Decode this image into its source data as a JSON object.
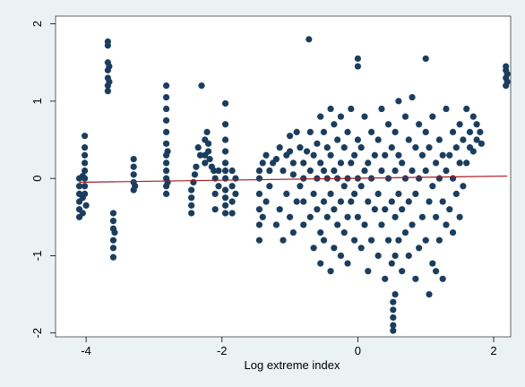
{
  "chart_data": {
    "type": "scatter",
    "title": "",
    "xlabel": "Log extreme index",
    "ylabel": "",
    "xlim": [
      -4.45,
      2.25
    ],
    "ylim": [
      -2.05,
      2.1
    ],
    "xticks": [
      -4,
      -2,
      0,
      2
    ],
    "yticks": [
      -2,
      -1,
      0,
      1,
      2
    ],
    "xtick_labels": [
      "-4",
      "-2",
      "0",
      "2"
    ],
    "ytick_labels": [
      "-2",
      "-1",
      "0",
      "1",
      "2"
    ],
    "grid": false,
    "legend": "none",
    "colors": {
      "background": "#eaf2f3",
      "plot_background": "#ffffff",
      "points": "#1b3d5e",
      "fit_line": "#a51d24"
    },
    "series": [
      {
        "kind": "scatter",
        "note_clusters": "points are dense vertical clusters at discrete x values",
        "points": [
          [
            -4.1,
            -0.5
          ],
          [
            -4.1,
            -0.4
          ],
          [
            -4.1,
            -0.3
          ],
          [
            -4.1,
            -0.2
          ],
          [
            -4.1,
            -0.1
          ],
          [
            -4.1,
            0.0
          ],
          [
            -4.05,
            -0.45
          ],
          [
            -4.05,
            -0.25
          ],
          [
            -4.05,
            0.03
          ],
          [
            -4.02,
            -0.2
          ],
          [
            -4.02,
            -0.1
          ],
          [
            -4.02,
            0.0
          ],
          [
            -4.02,
            0.1
          ],
          [
            -4.02,
            0.2
          ],
          [
            -4.02,
            0.3
          ],
          [
            -4.02,
            0.4
          ],
          [
            -4.02,
            0.55
          ],
          [
            -4.0,
            -0.35
          ],
          [
            -3.68,
            1.13
          ],
          [
            -3.68,
            1.2
          ],
          [
            -3.68,
            1.3
          ],
          [
            -3.68,
            1.4
          ],
          [
            -3.68,
            1.5
          ],
          [
            -3.68,
            1.77
          ],
          [
            -3.68,
            1.72
          ],
          [
            -3.66,
            1.25
          ],
          [
            -3.66,
            1.45
          ],
          [
            -3.6,
            -0.45
          ],
          [
            -3.6,
            -0.55
          ],
          [
            -3.6,
            -0.65
          ],
          [
            -3.6,
            -0.8
          ],
          [
            -3.6,
            -0.9
          ],
          [
            -3.6,
            -1.02
          ],
          [
            -3.58,
            -0.7
          ],
          [
            -3.3,
            -0.15
          ],
          [
            -3.3,
            -0.05
          ],
          [
            -3.3,
            0.05
          ],
          [
            -3.3,
            0.15
          ],
          [
            -3.3,
            0.25
          ],
          [
            -3.28,
            -0.1
          ],
          [
            -2.82,
            -0.2
          ],
          [
            -2.82,
            -0.1
          ],
          [
            -2.82,
            0.0
          ],
          [
            -2.82,
            0.1
          ],
          [
            -2.82,
            0.2
          ],
          [
            -2.82,
            0.3
          ],
          [
            -2.82,
            0.45
          ],
          [
            -2.82,
            0.6
          ],
          [
            -2.82,
            0.75
          ],
          [
            -2.82,
            0.9
          ],
          [
            -2.82,
            1.05
          ],
          [
            -2.82,
            1.2
          ],
          [
            -2.8,
            -0.05
          ],
          [
            -2.8,
            0.35
          ],
          [
            -2.45,
            -0.45
          ],
          [
            -2.45,
            -0.35
          ],
          [
            -2.45,
            -0.25
          ],
          [
            -2.45,
            -0.15
          ],
          [
            -2.42,
            -0.05
          ],
          [
            -2.4,
            0.05
          ],
          [
            -2.38,
            0.15
          ],
          [
            -2.35,
            0.4
          ],
          [
            -2.32,
            0.3
          ],
          [
            -2.25,
            0.2
          ],
          [
            -2.25,
            0.3
          ],
          [
            -2.25,
            0.5
          ],
          [
            -2.22,
            0.6
          ],
          [
            -2.2,
            0.45
          ],
          [
            -2.2,
            0.35
          ],
          [
            -2.18,
            0.25
          ],
          [
            -2.15,
            0.15
          ],
          [
            -2.12,
            0.1
          ],
          [
            -2.1,
            -0.4
          ],
          [
            -2.1,
            -0.2
          ],
          [
            -2.1,
            0.0
          ],
          [
            -2.05,
            -0.1
          ],
          [
            -2.05,
            0.1
          ],
          [
            -2.3,
            1.2
          ],
          [
            -1.95,
            -0.45
          ],
          [
            -1.95,
            -0.35
          ],
          [
            -1.95,
            -0.25
          ],
          [
            -1.95,
            -0.15
          ],
          [
            -1.95,
            0.0
          ],
          [
            -1.95,
            0.1
          ],
          [
            -1.95,
            0.2
          ],
          [
            -1.95,
            0.35
          ],
          [
            -1.95,
            0.5
          ],
          [
            -1.95,
            0.7
          ],
          [
            -1.95,
            0.97
          ],
          [
            -1.85,
            -0.3
          ],
          [
            -1.85,
            -0.1
          ],
          [
            -1.85,
            0.1
          ],
          [
            -1.85,
            -0.45
          ],
          [
            -1.8,
            -0.2
          ],
          [
            -1.8,
            0.0
          ],
          [
            -1.45,
            -0.8
          ],
          [
            -1.45,
            -0.6
          ],
          [
            -1.45,
            -0.4
          ],
          [
            -1.45,
            -0.2
          ],
          [
            -1.45,
            0.0
          ],
          [
            -1.45,
            0.1
          ],
          [
            -1.4,
            -0.5
          ],
          [
            -1.4,
            0.2
          ],
          [
            -1.35,
            -0.3
          ],
          [
            -1.35,
            0.3
          ],
          [
            -1.3,
            -0.1
          ],
          [
            -1.3,
            0.1
          ],
          [
            -1.25,
            0.2
          ],
          [
            -1.2,
            -0.6
          ],
          [
            -1.2,
            0.25
          ],
          [
            -1.15,
            -0.4
          ],
          [
            -1.15,
            0.4
          ],
          [
            -1.1,
            -0.8
          ],
          [
            -1.1,
            0.1
          ],
          [
            -1.05,
            -0.2
          ],
          [
            -1.05,
            0.3
          ],
          [
            -1.0,
            -0.5
          ],
          [
            -1.0,
            0.35
          ],
          [
            -1.0,
            0.55
          ],
          [
            -0.95,
            -0.7
          ],
          [
            -0.95,
            0.05
          ],
          [
            -0.95,
            0.2
          ],
          [
            -0.9,
            -0.3
          ],
          [
            -0.9,
            0.6
          ],
          [
            -0.85,
            -0.1
          ],
          [
            -0.85,
            0.4
          ],
          [
            -0.8,
            -0.6
          ],
          [
            -0.8,
            -0.3
          ],
          [
            -0.8,
            0.0
          ],
          [
            -0.8,
            0.2
          ],
          [
            -0.75,
            0.35
          ],
          [
            -0.72,
            1.8
          ],
          [
            -0.7,
            -0.5
          ],
          [
            -0.7,
            0.1
          ],
          [
            -0.7,
            0.6
          ],
          [
            -0.65,
            -0.9
          ],
          [
            -0.65,
            -0.2
          ],
          [
            -0.65,
            0.3
          ],
          [
            -0.6,
            -0.4
          ],
          [
            -0.6,
            0.0
          ],
          [
            -0.6,
            0.45
          ],
          [
            -0.55,
            -1.1
          ],
          [
            -0.55,
            -0.7
          ],
          [
            -0.55,
            0.2
          ],
          [
            -0.55,
            0.8
          ],
          [
            -0.5,
            -0.8
          ],
          [
            -0.5,
            -0.3
          ],
          [
            -0.5,
            0.1
          ],
          [
            -0.5,
            0.6
          ],
          [
            -0.45,
            -0.5
          ],
          [
            -0.45,
            0.0
          ],
          [
            -0.45,
            0.4
          ],
          [
            -0.4,
            -1.2
          ],
          [
            -0.4,
            -0.2
          ],
          [
            -0.4,
            0.3
          ],
          [
            -0.4,
            0.9
          ],
          [
            -0.35,
            -0.9
          ],
          [
            -0.35,
            -0.4
          ],
          [
            -0.35,
            0.1
          ],
          [
            -0.35,
            0.7
          ],
          [
            -0.3,
            -0.6
          ],
          [
            -0.3,
            0.0
          ],
          [
            -0.3,
            0.5
          ],
          [
            -0.25,
            -1.0
          ],
          [
            -0.25,
            -0.3
          ],
          [
            -0.25,
            0.2
          ],
          [
            -0.25,
            0.8
          ],
          [
            -0.2,
            -0.7
          ],
          [
            -0.2,
            -0.1
          ],
          [
            -0.2,
            0.4
          ],
          [
            -0.15,
            -1.1
          ],
          [
            -0.15,
            -0.5
          ],
          [
            -0.15,
            0.0
          ],
          [
            -0.15,
            0.6
          ],
          [
            -0.1,
            -0.3
          ],
          [
            -0.1,
            0.2
          ],
          [
            -0.1,
            0.9
          ],
          [
            -0.05,
            -0.8
          ],
          [
            -0.05,
            -0.2
          ],
          [
            -0.05,
            0.3
          ],
          [
            0.0,
            -0.5
          ],
          [
            0.0,
            0.0
          ],
          [
            0.0,
            0.5
          ],
          [
            0.0,
            1.55
          ],
          [
            0.0,
            1.45
          ],
          [
            0.05,
            -0.9
          ],
          [
            0.05,
            -0.1
          ],
          [
            0.05,
            0.4
          ],
          [
            0.1,
            -0.6
          ],
          [
            0.1,
            0.1
          ],
          [
            0.1,
            0.8
          ],
          [
            0.15,
            -1.2
          ],
          [
            0.15,
            -0.3
          ],
          [
            0.15,
            0.2
          ],
          [
            0.2,
            -0.8
          ],
          [
            0.2,
            0.0
          ],
          [
            0.2,
            0.6
          ],
          [
            0.25,
            -0.4
          ],
          [
            0.25,
            0.3
          ],
          [
            0.3,
            -1.0
          ],
          [
            0.3,
            -0.2
          ],
          [
            0.3,
            0.5
          ],
          [
            0.35,
            -0.6
          ],
          [
            0.35,
            0.1
          ],
          [
            0.35,
            0.9
          ],
          [
            0.4,
            -1.3
          ],
          [
            0.4,
            -0.4
          ],
          [
            0.4,
            0.3
          ],
          [
            0.45,
            -0.8
          ],
          [
            0.45,
            0.0
          ],
          [
            0.45,
            0.7
          ],
          [
            0.5,
            -1.1
          ],
          [
            0.5,
            -0.3
          ],
          [
            0.5,
            0.4
          ],
          [
            0.52,
            -1.6
          ],
          [
            0.52,
            -1.7
          ],
          [
            0.52,
            -1.8
          ],
          [
            0.52,
            -1.9
          ],
          [
            0.52,
            -1.97
          ],
          [
            0.55,
            -1.5
          ],
          [
            0.55,
            -1.0
          ],
          [
            0.55,
            -0.5
          ],
          [
            0.55,
            0.1
          ],
          [
            0.55,
            0.6
          ],
          [
            0.6,
            -0.8
          ],
          [
            0.6,
            -0.2
          ],
          [
            0.6,
            0.3
          ],
          [
            0.6,
            1.0
          ],
          [
            0.65,
            -1.2
          ],
          [
            0.65,
            -0.4
          ],
          [
            0.65,
            0.2
          ],
          [
            0.7,
            -0.7
          ],
          [
            0.7,
            0.0
          ],
          [
            0.7,
            0.8
          ],
          [
            0.75,
            -1.0
          ],
          [
            0.75,
            -0.3
          ],
          [
            0.75,
            0.5
          ],
          [
            0.8,
            -0.6
          ],
          [
            0.8,
            0.1
          ],
          [
            0.8,
            1.05
          ],
          [
            0.85,
            -1.3
          ],
          [
            0.85,
            -0.2
          ],
          [
            0.85,
            0.4
          ],
          [
            0.9,
            -0.9
          ],
          [
            0.9,
            0.0
          ],
          [
            0.9,
            0.7
          ],
          [
            0.95,
            -0.5
          ],
          [
            0.95,
            0.3
          ],
          [
            1.0,
            -0.8
          ],
          [
            1.0,
            0.1
          ],
          [
            1.0,
            0.6
          ],
          [
            1.0,
            1.55
          ],
          [
            1.05,
            -1.5
          ],
          [
            1.05,
            -0.3
          ],
          [
            1.05,
            0.4
          ],
          [
            1.1,
            -1.1
          ],
          [
            1.1,
            -0.1
          ],
          [
            1.1,
            0.8
          ],
          [
            1.15,
            -1.2
          ],
          [
            1.15,
            -0.5
          ],
          [
            1.15,
            0.2
          ],
          [
            1.2,
            -0.8
          ],
          [
            1.2,
            0.0
          ],
          [
            1.2,
            0.5
          ],
          [
            1.25,
            -1.3
          ],
          [
            1.25,
            -0.3
          ],
          [
            1.25,
            0.3
          ],
          [
            1.3,
            -0.6
          ],
          [
            1.3,
            0.1
          ],
          [
            1.3,
            0.9
          ],
          [
            1.35,
            -0.4
          ],
          [
            1.35,
            0.3
          ],
          [
            1.4,
            -0.7
          ],
          [
            1.4,
            0.0
          ],
          [
            1.4,
            0.6
          ],
          [
            1.45,
            -0.2
          ],
          [
            1.45,
            0.4
          ],
          [
            1.5,
            -0.5
          ],
          [
            1.5,
            0.2
          ],
          [
            1.5,
            0.7
          ],
          [
            1.55,
            -0.1
          ],
          [
            1.55,
            0.5
          ],
          [
            1.6,
            0.2
          ],
          [
            1.6,
            0.9
          ],
          [
            1.65,
            0.6
          ],
          [
            1.65,
            0.4
          ],
          [
            1.7,
            0.8
          ],
          [
            1.7,
            0.35
          ],
          [
            1.75,
            0.7
          ],
          [
            1.75,
            0.5
          ],
          [
            1.8,
            0.6
          ],
          [
            1.82,
            0.45
          ],
          [
            2.18,
            1.2
          ],
          [
            2.18,
            1.3
          ],
          [
            2.18,
            1.4
          ],
          [
            2.18,
            1.45
          ],
          [
            2.2,
            1.25
          ],
          [
            2.2,
            1.35
          ]
        ]
      },
      {
        "kind": "line",
        "points": [
          [
            -4.1,
            -0.05
          ],
          [
            2.2,
            0.03
          ]
        ]
      }
    ]
  }
}
